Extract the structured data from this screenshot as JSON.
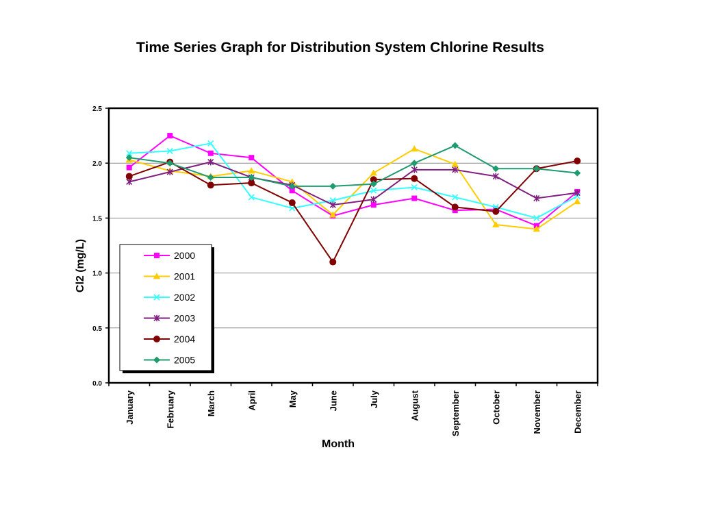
{
  "title": "Time Series Graph for Distribution System Chlorine Results",
  "chart_data": {
    "type": "line",
    "title": "Time Series Graph for Distribution System Chlorine Results",
    "xlabel": "Month",
    "ylabel": "Cl2 (mg/L)",
    "ylim": [
      0,
      2.5
    ],
    "yticks": [
      "0.0",
      "0.5",
      "1.0",
      "1.5",
      "2.0",
      "2.5"
    ],
    "grid": "horizontal",
    "legend_position": "bottom-left",
    "categories": [
      "January",
      "February",
      "March",
      "April",
      "May",
      "June",
      "July",
      "August",
      "September",
      "October",
      "November",
      "December"
    ],
    "series": [
      {
        "name": "2000",
        "color": "#ff00ff",
        "marker": "square",
        "values": [
          1.96,
          2.25,
          2.09,
          2.05,
          1.75,
          1.52,
          1.62,
          1.68,
          1.57,
          1.58,
          1.43,
          1.74
        ]
      },
      {
        "name": "2001",
        "color": "#ffcc00",
        "marker": "triangle",
        "values": [
          2.03,
          1.93,
          1.88,
          1.93,
          1.83,
          1.53,
          1.91,
          2.13,
          1.99,
          1.44,
          1.4,
          1.65
        ]
      },
      {
        "name": "2002",
        "color": "#33ffff",
        "marker": "x",
        "values": [
          2.09,
          2.11,
          2.18,
          1.69,
          1.59,
          1.66,
          1.75,
          1.78,
          1.69,
          1.6,
          1.5,
          1.7
        ]
      },
      {
        "name": "2003",
        "color": "#7f1f7f",
        "marker": "star",
        "values": [
          1.83,
          1.92,
          2.01,
          1.87,
          1.8,
          1.62,
          1.67,
          1.94,
          1.94,
          1.88,
          1.68,
          1.73
        ]
      },
      {
        "name": "2004",
        "color": "#800000",
        "marker": "circle",
        "values": [
          1.88,
          2.01,
          1.8,
          1.82,
          1.64,
          1.1,
          1.85,
          1.86,
          1.6,
          1.56,
          1.95,
          2.02
        ]
      },
      {
        "name": "2005",
        "color": "#1f9b6f",
        "marker": "diamond",
        "values": [
          2.05,
          2.0,
          1.87,
          1.87,
          1.79,
          1.79,
          1.81,
          2.0,
          2.16,
          1.95,
          1.95,
          1.91
        ]
      }
    ]
  }
}
